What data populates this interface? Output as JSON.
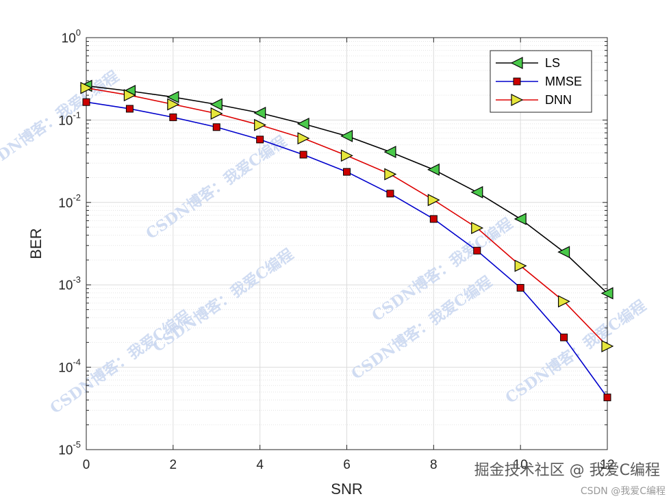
{
  "chart_data": {
    "type": "line",
    "xlabel": "SNR",
    "ylabel": "BER",
    "xlim": [
      0,
      12
    ],
    "ylim": [
      1e-05,
      1
    ],
    "yscale": "log",
    "grid": true,
    "legend_position": "top-right",
    "x_ticks": [
      "0",
      "2",
      "4",
      "6",
      "8",
      "10",
      "12"
    ],
    "y_ticks": [
      {
        "base": "10",
        "exp": "-5"
      },
      {
        "base": "10",
        "exp": "-4"
      },
      {
        "base": "10",
        "exp": "-3"
      },
      {
        "base": "10",
        "exp": "-2"
      },
      {
        "base": "10",
        "exp": "-1"
      },
      {
        "base": "10",
        "exp": "0"
      }
    ],
    "x": [
      0,
      1,
      2,
      3,
      4,
      5,
      6,
      7,
      8,
      9,
      10,
      11,
      12
    ],
    "series": [
      {
        "name": "LS",
        "color": "#000000",
        "marker": "triangle-left",
        "marker_fill": "#4ac94a",
        "values": [
          0.26,
          0.225,
          0.19,
          0.155,
          0.122,
          0.09,
          0.064,
          0.041,
          0.025,
          0.0133,
          0.0063,
          0.0025,
          0.00079
        ]
      },
      {
        "name": "MMSE",
        "color": "#0000cc",
        "marker": "square",
        "marker_fill": "#cc0000",
        "values": [
          0.165,
          0.137,
          0.108,
          0.082,
          0.058,
          0.038,
          0.0235,
          0.0128,
          0.0063,
          0.0026,
          0.00092,
          0.00023,
          4.3e-05
        ]
      },
      {
        "name": "DNN",
        "color": "#dd0000",
        "marker": "triangle-right",
        "marker_fill": "#e6e63c",
        "values": [
          0.245,
          0.2,
          0.155,
          0.12,
          0.087,
          0.06,
          0.037,
          0.022,
          0.0107,
          0.0049,
          0.0017,
          0.00063,
          0.00018
        ]
      }
    ]
  },
  "watermarks": {
    "blog": "CSDN博客：我爱C编程"
  },
  "credits": {
    "main": "掘金技术社区 @ 我爱C编程",
    "sub": "CSDN @我爱C编程"
  }
}
